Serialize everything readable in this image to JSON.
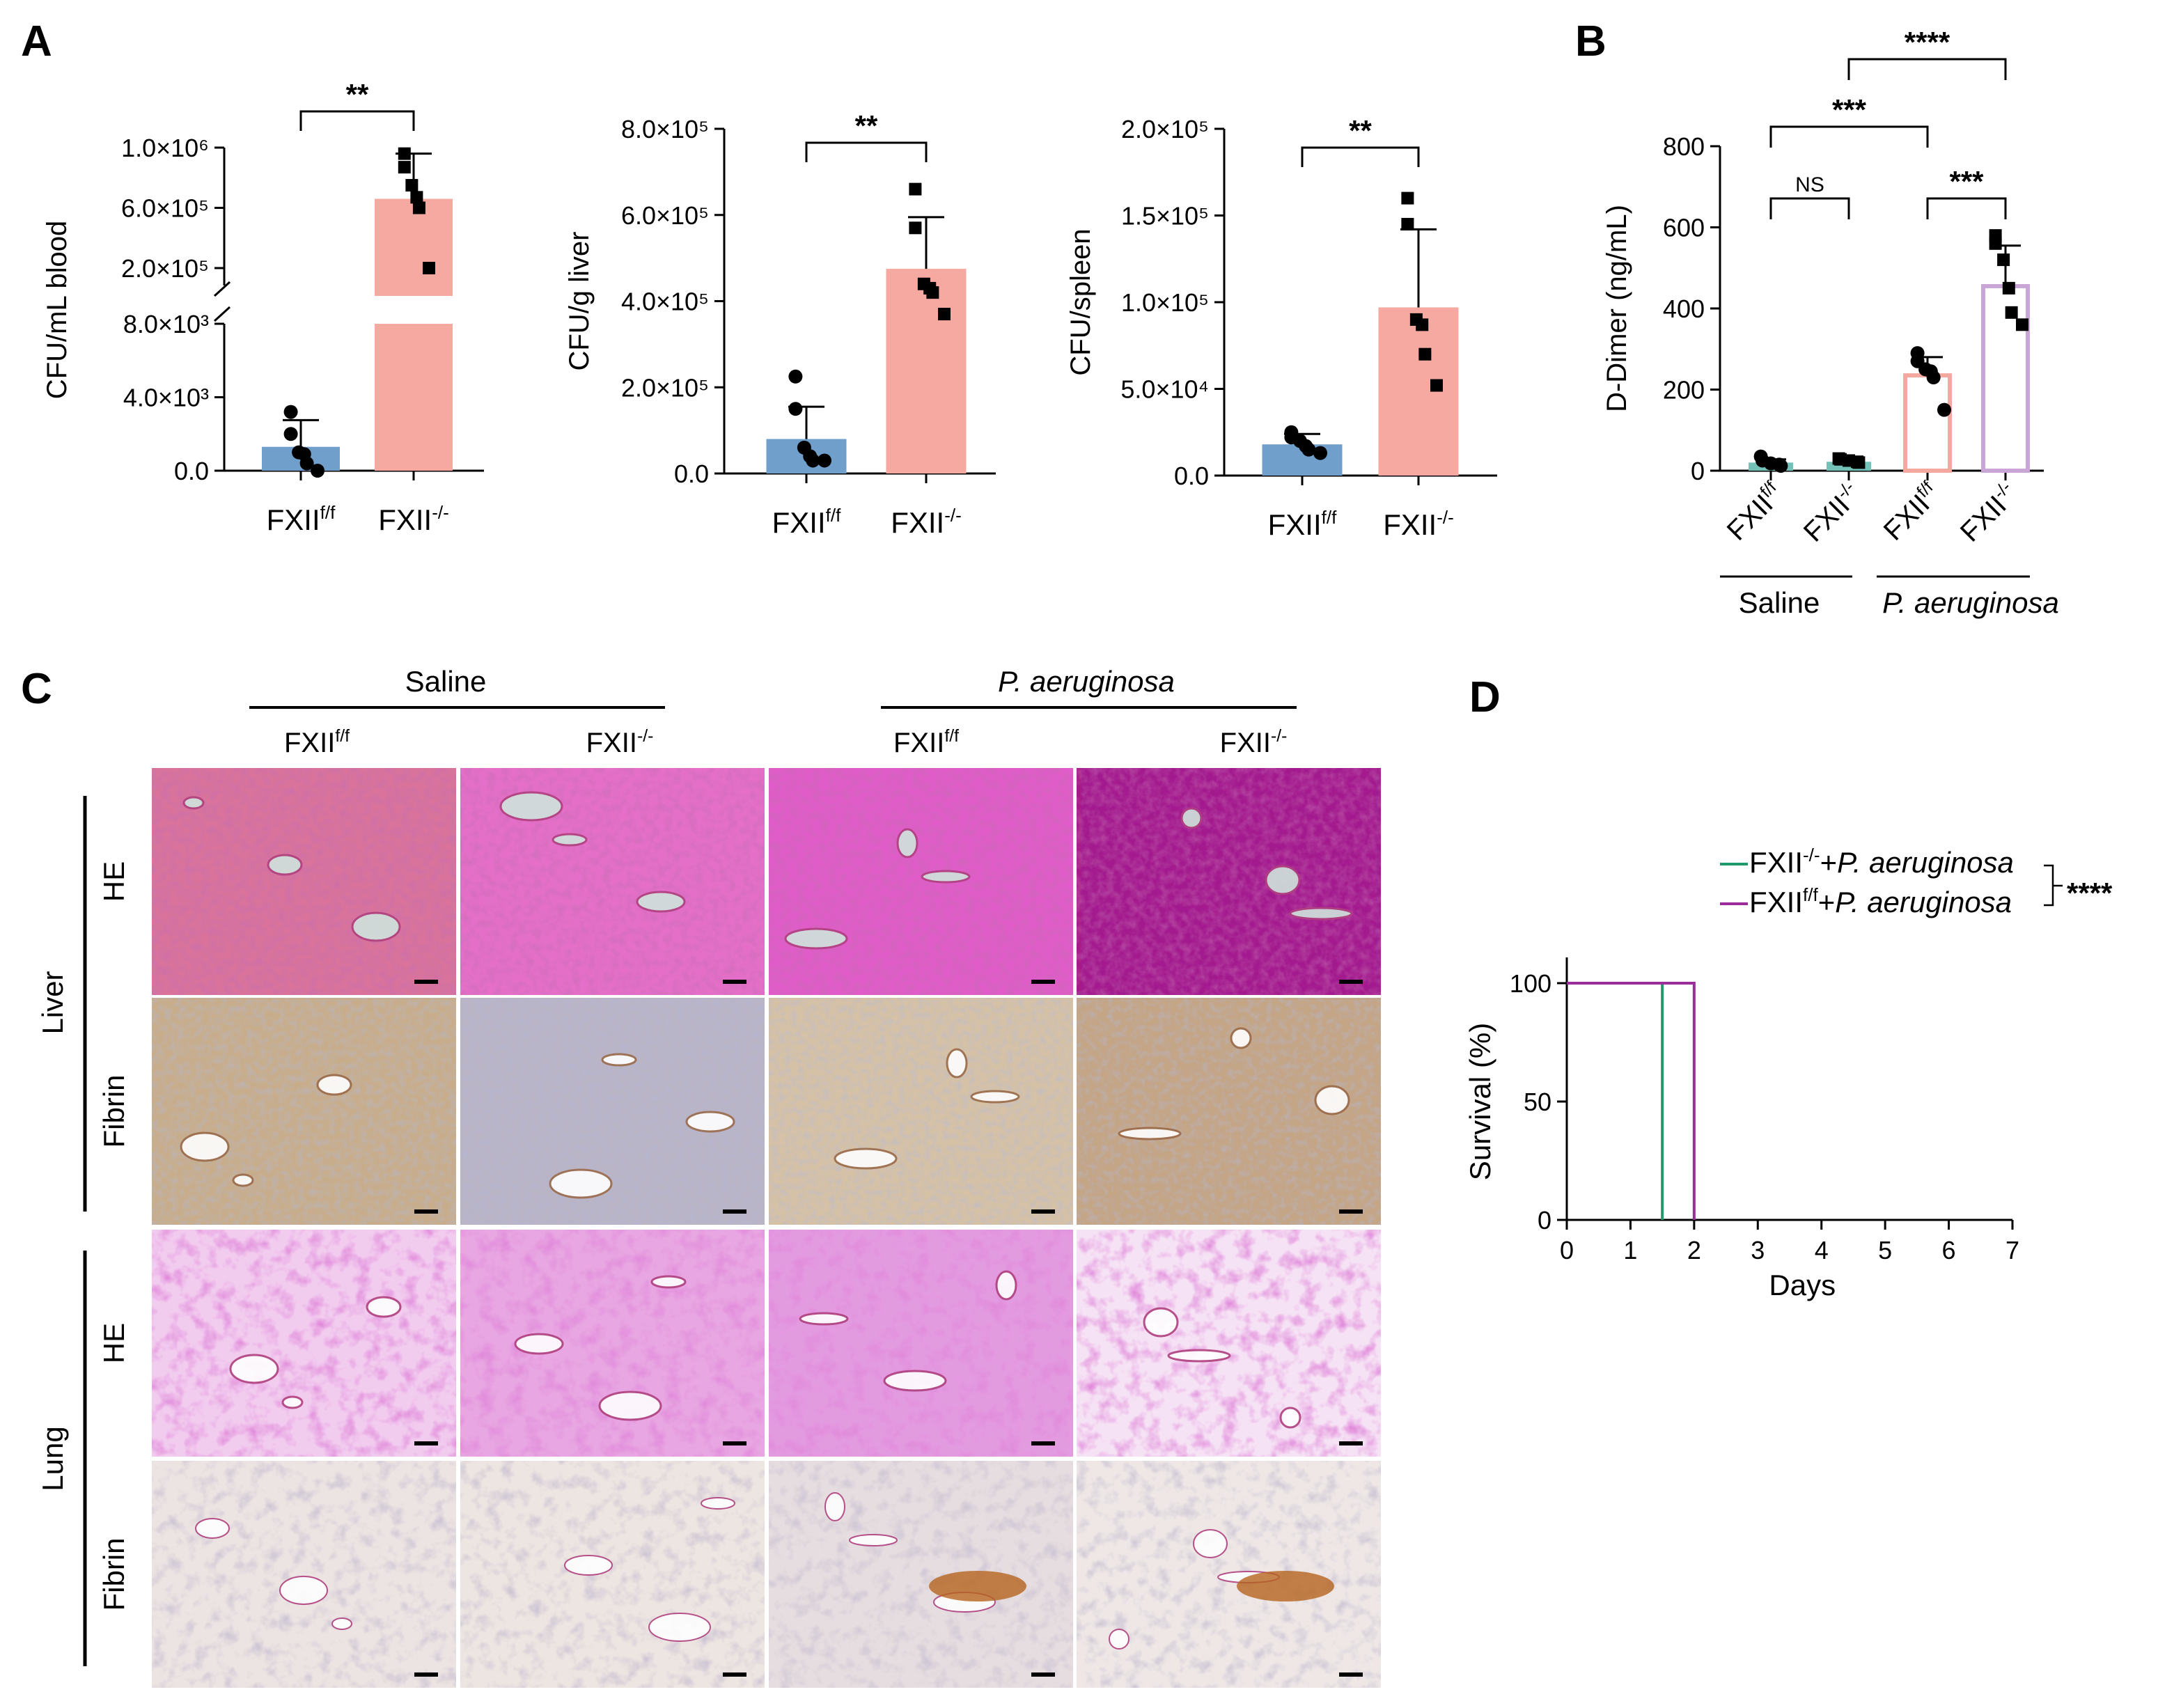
{
  "panel_labels": [
    "A",
    "B",
    "C",
    "D"
  ],
  "genotypes": {
    "ff": "FXII",
    "ff_sup": "f/f",
    "ko": "FXII",
    "ko_sup": "-/-"
  },
  "significance": {
    "p01": "**",
    "p001": "***",
    "p0001": "****",
    "ns": "NS"
  },
  "colors": {
    "ff_fill": "#6f9fca",
    "ko_fill": "#f6a9a0",
    "b_saline_bar": "#73c1b7",
    "b_pa_ff_outline": "#f4a8a0",
    "b_pa_ko_outline": "#c9a6d6",
    "survival_ko": "#1f9a6b",
    "survival_ff": "#9b2d9b"
  },
  "histology": {
    "groups": [
      "Saline",
      "P. aeruginosa"
    ],
    "columns": [
      {
        "base": "FXII",
        "sup": "f/f"
      },
      {
        "base": "FXII",
        "sup": "-/-"
      },
      {
        "base": "FXII",
        "sup": "f/f"
      },
      {
        "base": "FXII",
        "sup": "-/-"
      }
    ],
    "organs": [
      "Liver",
      "Lung"
    ],
    "stains": [
      "HE",
      "Fibrin"
    ]
  },
  "chart_data": [
    {
      "id": "A1",
      "type": "bar",
      "ylabel": "CFU/mL blood",
      "categories": [
        "FXIIf/f",
        "FXII-/-"
      ],
      "y_axis_broken": true,
      "lower_segment": {
        "ylim": [
          0,
          8000
        ],
        "ticks": [
          "0.0",
          "4.0×10³",
          "8.0×10³"
        ]
      },
      "upper_segment": {
        "ylim": [
          0,
          1000000
        ],
        "ticks": [
          "2.0×10⁵",
          "6.0×10⁵",
          "1.0×10⁶"
        ]
      },
      "means": [
        1300,
        660000
      ],
      "sd": [
        1300,
        300000
      ],
      "points": [
        [
          3200,
          2000,
          1000,
          900,
          400,
          0
        ],
        [
          960000,
          870000,
          750000,
          670000,
          600000,
          200000
        ]
      ],
      "significance": "**"
    },
    {
      "id": "A2",
      "type": "bar",
      "ylabel": "CFU/g liver",
      "categories": [
        "FXIIf/f",
        "FXII-/-"
      ],
      "ylim": [
        0,
        800000
      ],
      "ticks": [
        "0.0",
        "2.0×10⁵",
        "4.0×10⁵",
        "6.0×10⁵",
        "8.0×10⁵"
      ],
      "tick_values": [
        0,
        200000,
        400000,
        600000,
        800000
      ],
      "means": [
        80000,
        475000
      ],
      "sd": [
        75000,
        120000
      ],
      "points": [
        [
          225000,
          150000,
          60000,
          40000,
          30000,
          30000
        ],
        [
          660000,
          570000,
          440000,
          430000,
          420000,
          370000
        ]
      ],
      "significance": "**"
    },
    {
      "id": "A3",
      "type": "bar",
      "ylabel": "CFU/spleen",
      "categories": [
        "FXIIf/f",
        "FXII-/-"
      ],
      "ylim": [
        0,
        200000
      ],
      "ticks": [
        "0.0",
        "5.0×10⁴",
        "1.0×10⁵",
        "1.5×10⁵",
        "2.0×10⁵"
      ],
      "tick_values": [
        0,
        50000,
        100000,
        150000,
        200000
      ],
      "means": [
        18000,
        97000
      ],
      "sd": [
        6000,
        45000
      ],
      "points": [
        [
          25000,
          22000,
          20000,
          17000,
          15000,
          13000
        ],
        [
          160000,
          145000,
          90000,
          87000,
          70000,
          52000
        ]
      ],
      "significance": "**"
    },
    {
      "id": "B",
      "type": "bar",
      "ylabel": "D-Dimer (ng/mL)",
      "categories": [
        "FXIIf/f",
        "FXII-/-",
        "FXIIf/f",
        "FXII-/-"
      ],
      "groups": [
        {
          "label": "Saline",
          "italic": false
        },
        {
          "label": "P. aeruginosa",
          "italic": true
        }
      ],
      "ylim": [
        0,
        800
      ],
      "ticks": [
        "0",
        "200",
        "400",
        "600",
        "800"
      ],
      "tick_values": [
        0,
        200,
        400,
        600,
        800
      ],
      "means": [
        20,
        22,
        235,
        455
      ],
      "sd": [
        8,
        6,
        45,
        100
      ],
      "points": [
        [
          35,
          25,
          18,
          15,
          12
        ],
        [
          30,
          28,
          25,
          22,
          20
        ],
        [
          290,
          270,
          250,
          245,
          230,
          150
        ],
        [
          580,
          560,
          520,
          450,
          390,
          360
        ]
      ],
      "comparisons": [
        {
          "between": [
            0,
            1
          ],
          "label": "NS"
        },
        {
          "between": [
            2,
            3
          ],
          "label": "***"
        },
        {
          "between": [
            0,
            2
          ],
          "label": "***"
        },
        {
          "between": [
            1,
            3
          ],
          "label": "****"
        }
      ]
    },
    {
      "id": "D",
      "type": "line",
      "xlabel": "Days",
      "ylabel": "Survival (%)",
      "xlim": [
        0,
        7
      ],
      "ylim": [
        0,
        100
      ],
      "xticks": [
        "0",
        "1",
        "2",
        "3",
        "4",
        "5",
        "6",
        "7"
      ],
      "yticks": [
        "0",
        "50",
        "100"
      ],
      "series": [
        {
          "name": "FXII-/-+P. aeruginosa",
          "base": "FXII",
          "sup": "-/-",
          "suffix": "P. aeruginosa",
          "x": [
            0,
            1.5,
            1.5
          ],
          "y": [
            100,
            100,
            0
          ]
        },
        {
          "name": "FXIIf/f+P. aeruginosa",
          "base": "FXII",
          "sup": "f/f",
          "suffix": "P. aeruginosa",
          "x": [
            0,
            2,
            2
          ],
          "y": [
            100,
            100,
            0
          ]
        }
      ],
      "significance": "****"
    }
  ]
}
